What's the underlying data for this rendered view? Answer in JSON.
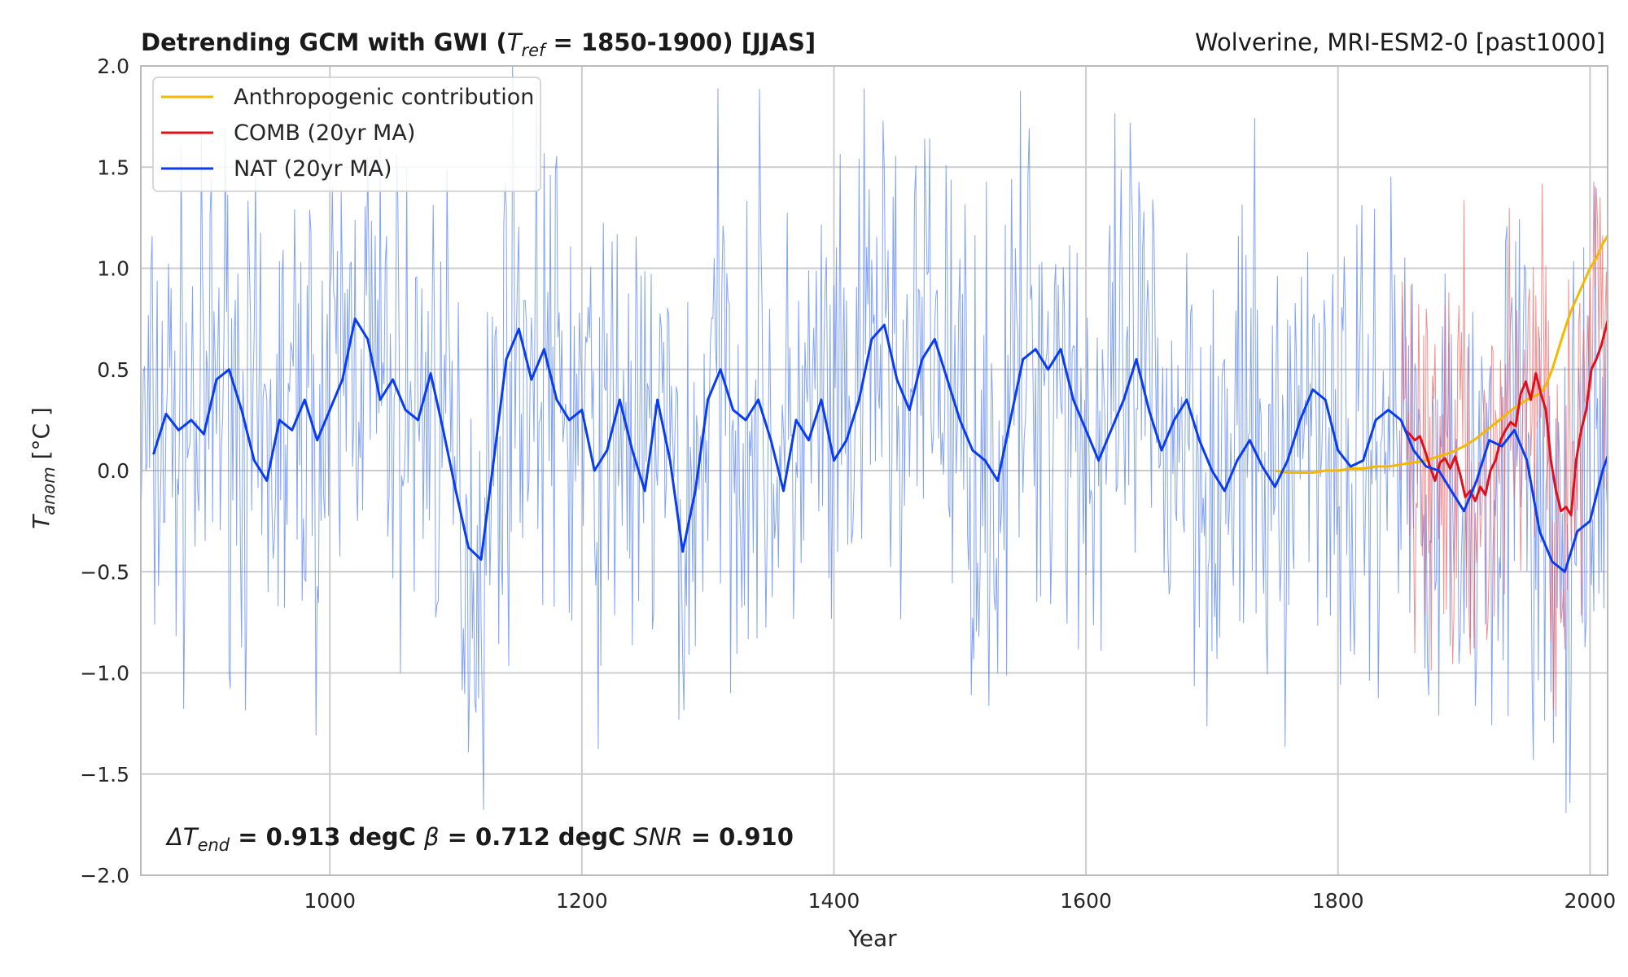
{
  "chart_data": {
    "type": "line",
    "title_main": "Detrending GCM with GWI (",
    "title_tref_symbol": "T",
    "title_tref_sub": "ref",
    "title_tref_rest": " = 1850-1900) [JJAS]",
    "title_right": "Wolverine, MRI-ESM2-0 [past1000]",
    "xlabel": "Year",
    "ylabel_symbol": "T",
    "ylabel_sub": "anom",
    "ylabel_unit": " [°C ]",
    "xlim": [
      850,
      2014
    ],
    "ylim": [
      -2.0,
      2.0
    ],
    "xticks": [
      1000,
      1200,
      1400,
      1600,
      1800,
      2000
    ],
    "xtick_labels": [
      "1000",
      "1200",
      "1400",
      "1600",
      "1800",
      "2000"
    ],
    "yticks": [
      -2.0,
      -1.5,
      -1.0,
      -0.5,
      0.0,
      0.5,
      1.0,
      1.5,
      2.0
    ],
    "ytick_labels": [
      "−2.0",
      "−1.5",
      "−1.0",
      "−0.5",
      "0.0",
      "0.5",
      "1.0",
      "1.5",
      "2.0"
    ],
    "grid": true,
    "legend_position": "top-left",
    "colors": {
      "anthropogenic": "#f5b800",
      "comb": "#e0101a",
      "nat": "#0a3cf0",
      "nat_raw": "#5a84f5",
      "comb_raw": "#f06060",
      "grid": "#cccccc",
      "spine": "#bbbbbb"
    },
    "series": [
      {
        "name": "Anthropogenic contribution",
        "key": "anthropogenic",
        "x": [
          1750,
          1760,
          1770,
          1780,
          1790,
          1800,
          1810,
          1820,
          1830,
          1840,
          1850,
          1860,
          1870,
          1880,
          1890,
          1900,
          1910,
          1920,
          1930,
          1940,
          1950,
          1960,
          1965,
          1970,
          1975,
          1980,
          1985,
          1990,
          1995,
          2000,
          2005,
          2010,
          2014
        ],
        "values": [
          0.0,
          -0.01,
          -0.01,
          -0.01,
          0.0,
          0.0,
          0.01,
          0.01,
          0.02,
          0.02,
          0.03,
          0.04,
          0.05,
          0.07,
          0.09,
          0.12,
          0.16,
          0.21,
          0.26,
          0.31,
          0.35,
          0.38,
          0.42,
          0.5,
          0.6,
          0.7,
          0.79,
          0.86,
          0.93,
          1.0,
          1.05,
          1.12,
          1.16
        ]
      },
      {
        "name": "COMB (20yr MA)",
        "key": "comb",
        "x": [
          1853,
          1857,
          1861,
          1865,
          1869,
          1873,
          1877,
          1881,
          1885,
          1889,
          1893,
          1897,
          1901,
          1905,
          1909,
          1913,
          1917,
          1921,
          1925,
          1929,
          1933,
          1937,
          1941,
          1945,
          1949,
          1953,
          1957,
          1961,
          1965,
          1969,
          1973,
          1977,
          1981,
          1985,
          1989,
          1993,
          1997,
          2001,
          2005,
          2009,
          2014
        ],
        "values": [
          0.2,
          0.18,
          0.15,
          0.17,
          0.1,
          0.02,
          -0.05,
          0.04,
          0.06,
          0.01,
          0.07,
          -0.02,
          -0.13,
          -0.1,
          -0.15,
          -0.08,
          -0.12,
          0.0,
          0.05,
          0.15,
          0.2,
          0.24,
          0.22,
          0.38,
          0.44,
          0.35,
          0.48,
          0.38,
          0.3,
          0.05,
          -0.1,
          -0.2,
          -0.18,
          -0.22,
          0.05,
          0.2,
          0.3,
          0.5,
          0.55,
          0.62,
          0.74
        ]
      },
      {
        "name": "NAT (20yr MA)",
        "key": "nat",
        "x": [
          860,
          870,
          880,
          890,
          900,
          910,
          920,
          930,
          940,
          950,
          960,
          970,
          980,
          990,
          1000,
          1010,
          1020,
          1030,
          1040,
          1050,
          1060,
          1070,
          1080,
          1090,
          1100,
          1110,
          1120,
          1130,
          1140,
          1150,
          1160,
          1170,
          1180,
          1190,
          1200,
          1210,
          1220,
          1230,
          1240,
          1250,
          1260,
          1270,
          1280,
          1290,
          1300,
          1310,
          1320,
          1330,
          1340,
          1350,
          1360,
          1370,
          1380,
          1390,
          1400,
          1410,
          1420,
          1430,
          1440,
          1450,
          1460,
          1470,
          1480,
          1490,
          1500,
          1510,
          1520,
          1530,
          1540,
          1550,
          1560,
          1570,
          1580,
          1590,
          1600,
          1610,
          1620,
          1630,
          1640,
          1650,
          1660,
          1670,
          1680,
          1690,
          1700,
          1710,
          1720,
          1730,
          1740,
          1750,
          1760,
          1770,
          1780,
          1790,
          1800,
          1810,
          1820,
          1830,
          1840,
          1850,
          1860,
          1870,
          1880,
          1890,
          1900,
          1910,
          1920,
          1930,
          1940,
          1950,
          1960,
          1970,
          1980,
          1990,
          2000,
          2010,
          2014
        ],
        "values": [
          0.08,
          0.28,
          0.2,
          0.25,
          0.18,
          0.45,
          0.5,
          0.3,
          0.05,
          -0.05,
          0.25,
          0.2,
          0.35,
          0.15,
          0.3,
          0.45,
          0.75,
          0.65,
          0.35,
          0.45,
          0.3,
          0.25,
          0.48,
          0.2,
          -0.1,
          -0.38,
          -0.44,
          0.05,
          0.55,
          0.7,
          0.45,
          0.6,
          0.35,
          0.25,
          0.3,
          0.0,
          0.1,
          0.35,
          0.1,
          -0.1,
          0.35,
          0.05,
          -0.4,
          -0.1,
          0.35,
          0.5,
          0.3,
          0.25,
          0.35,
          0.15,
          -0.1,
          0.25,
          0.15,
          0.35,
          0.05,
          0.15,
          0.35,
          0.65,
          0.72,
          0.45,
          0.3,
          0.55,
          0.65,
          0.45,
          0.25,
          0.1,
          0.05,
          -0.05,
          0.25,
          0.55,
          0.6,
          0.5,
          0.6,
          0.35,
          0.2,
          0.05,
          0.2,
          0.35,
          0.55,
          0.3,
          0.1,
          0.25,
          0.35,
          0.15,
          0.0,
          -0.1,
          0.05,
          0.15,
          0.02,
          -0.08,
          0.05,
          0.25,
          0.4,
          0.35,
          0.1,
          0.02,
          0.05,
          0.25,
          0.3,
          0.25,
          0.1,
          0.02,
          0.0,
          -0.1,
          -0.2,
          -0.05,
          0.15,
          0.12,
          0.2,
          0.05,
          -0.3,
          -0.45,
          -0.5,
          -0.3,
          -0.25,
          0.0,
          0.07
        ]
      }
    ],
    "annotation": {
      "delta_symbol": "ΔT",
      "delta_sub": "end",
      "delta_value": " = 0.913 degC ",
      "beta_symbol": "β",
      "beta_value": " = 0.712 degC ",
      "snr_symbol": "SNR",
      "snr_value": " =  0.910"
    }
  }
}
